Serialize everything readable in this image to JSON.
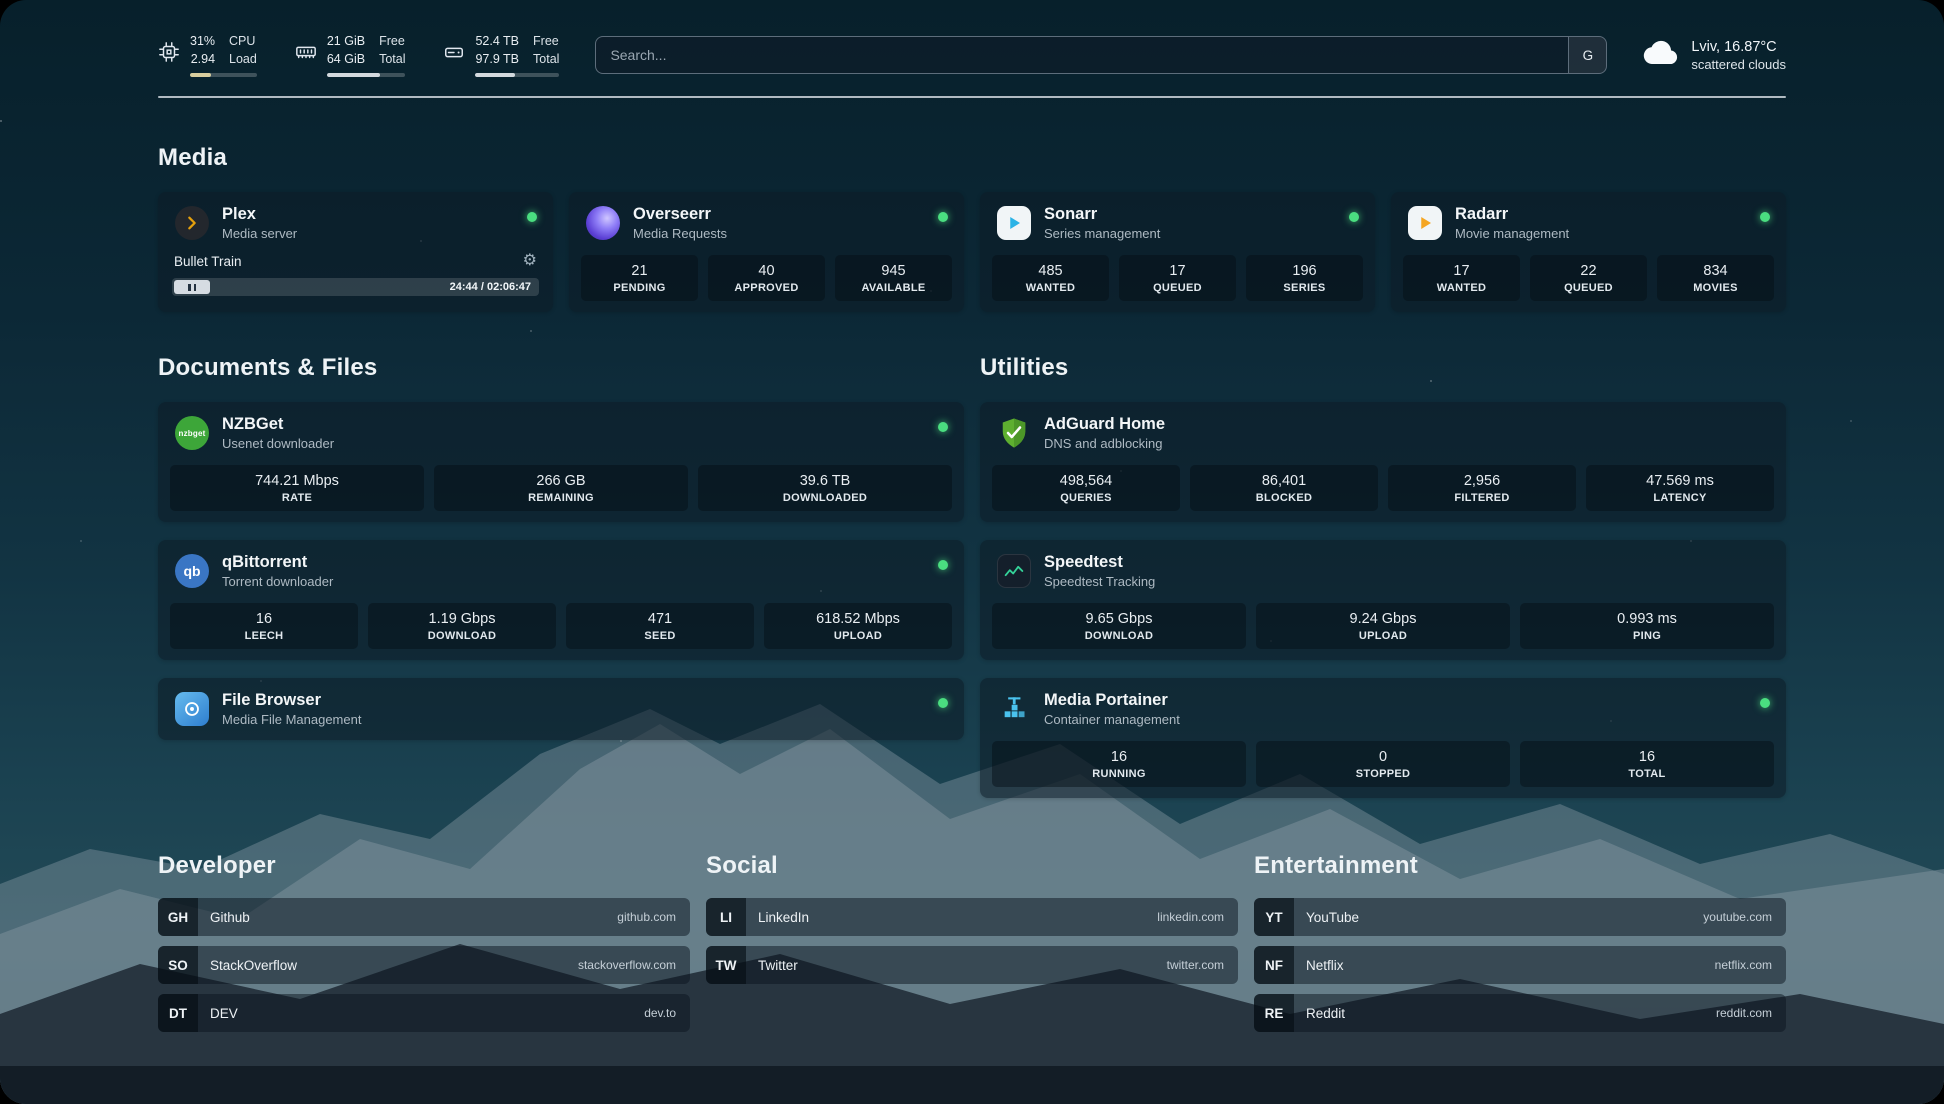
{
  "colors": {
    "status_ok": "#4ade80",
    "plex_accent": "#e5a00d",
    "sonarr_accent": "#2bb3e6",
    "radarr_accent": "#f5a623",
    "nzbget_accent": "#3da639",
    "qbittorrent_accent": "#3a76c4",
    "adguard_accent": "#5eaf30",
    "speedtest_accent": "#34d399",
    "portainer_accent": "#4ac2ee"
  },
  "topbar": {
    "resources": [
      {
        "icon": "cpu-icon",
        "values": [
          "31%",
          "2.94"
        ],
        "labels": [
          "CPU",
          "Load"
        ],
        "progress": 31,
        "bar_color": "#d8ce9f"
      },
      {
        "icon": "memory-icon",
        "values": [
          "21 GiB",
          "64 GiB"
        ],
        "labels": [
          "Free",
          "Total"
        ],
        "progress": 67,
        "bar_color": "#d3d9de"
      },
      {
        "icon": "disk-icon",
        "values": [
          "52.4 TB",
          "97.9 TB"
        ],
        "labels": [
          "Free",
          "Total"
        ],
        "progress": 47,
        "bar_color": "#d3d9de"
      }
    ],
    "search": {
      "placeholder": "Search...",
      "provider": "G"
    },
    "weather": {
      "icon": "cloud-icon",
      "location": "Lviv, 16.87°C",
      "condition": "scattered clouds"
    }
  },
  "sections": {
    "media": {
      "title": "Media",
      "plex": {
        "icon": "plex-icon",
        "name": "Plex",
        "subtitle": "Media server",
        "online": true,
        "now_playing": "Bullet Train",
        "time": "24:44 / 02:06:47"
      },
      "overseerr": {
        "icon": "overseerr-icon",
        "name": "Overseerr",
        "subtitle": "Media Requests",
        "online": true,
        "stats": [
          {
            "value": "21",
            "label": "PENDING"
          },
          {
            "value": "40",
            "label": "APPROVED"
          },
          {
            "value": "945",
            "label": "AVAILABLE"
          }
        ]
      },
      "sonarr": {
        "icon": "sonarr-icon",
        "name": "Sonarr",
        "subtitle": "Series management",
        "online": true,
        "stats": [
          {
            "value": "485",
            "label": "WANTED"
          },
          {
            "value": "17",
            "label": "QUEUED"
          },
          {
            "value": "196",
            "label": "SERIES"
          }
        ]
      },
      "radarr": {
        "icon": "radarr-icon",
        "name": "Radarr",
        "subtitle": "Movie management",
        "online": true,
        "stats": [
          {
            "value": "17",
            "label": "WANTED"
          },
          {
            "value": "22",
            "label": "QUEUED"
          },
          {
            "value": "834",
            "label": "MOVIES"
          }
        ]
      }
    },
    "documents": {
      "title": "Documents & Files",
      "nzbget": {
        "icon": "nzbget-icon",
        "name": "NZBGet",
        "subtitle": "Usenet downloader",
        "online": true,
        "stats": [
          {
            "value": "744.21 Mbps",
            "label": "RATE"
          },
          {
            "value": "266 GB",
            "label": "REMAINING"
          },
          {
            "value": "39.6 TB",
            "label": "DOWNLOADED"
          }
        ]
      },
      "qbittorrent": {
        "icon": "qbittorrent-icon",
        "name": "qBittorrent",
        "subtitle": "Torrent downloader",
        "online": true,
        "stats": [
          {
            "value": "16",
            "label": "LEECH"
          },
          {
            "value": "1.19 Gbps",
            "label": "DOWNLOAD"
          },
          {
            "value": "471",
            "label": "SEED"
          },
          {
            "value": "618.52 Mbps",
            "label": "UPLOAD"
          }
        ]
      },
      "filebrowser": {
        "icon": "filebrowser-icon",
        "name": "File Browser",
        "subtitle": "Media File Management",
        "online": true
      }
    },
    "utilities": {
      "title": "Utilities",
      "adguard": {
        "icon": "adguard-icon",
        "name": "AdGuard Home",
        "subtitle": "DNS and adblocking",
        "stats": [
          {
            "value": "498,564",
            "label": "QUERIES"
          },
          {
            "value": "86,401",
            "label": "BLOCKED"
          },
          {
            "value": "2,956",
            "label": "FILTERED"
          },
          {
            "value": "47.569 ms",
            "label": "LATENCY"
          }
        ]
      },
      "speedtest": {
        "icon": "speedtest-icon",
        "name": "Speedtest",
        "subtitle": "Speedtest Tracking",
        "stats": [
          {
            "value": "9.65 Gbps",
            "label": "DOWNLOAD"
          },
          {
            "value": "9.24 Gbps",
            "label": "UPLOAD"
          },
          {
            "value": "0.993 ms",
            "label": "PING"
          }
        ]
      },
      "portainer": {
        "icon": "portainer-icon",
        "name": "Media Portainer",
        "subtitle": "Container management",
        "online": true,
        "stats": [
          {
            "value": "16",
            "label": "RUNNING"
          },
          {
            "value": "0",
            "label": "STOPPED"
          },
          {
            "value": "16",
            "label": "TOTAL"
          }
        ]
      }
    }
  },
  "bookmarks": [
    {
      "title": "Developer",
      "items": [
        {
          "abbr": "GH",
          "name": "Github",
          "url": "github.com"
        },
        {
          "abbr": "SO",
          "name": "StackOverflow",
          "url": "stackoverflow.com"
        },
        {
          "abbr": "DT",
          "name": "DEV",
          "url": "dev.to"
        }
      ]
    },
    {
      "title": "Social",
      "items": [
        {
          "abbr": "LI",
          "name": "LinkedIn",
          "url": "linkedin.com"
        },
        {
          "abbr": "TW",
          "name": "Twitter",
          "url": "twitter.com"
        }
      ]
    },
    {
      "title": "Entertainment",
      "items": [
        {
          "abbr": "YT",
          "name": "YouTube",
          "url": "youtube.com"
        },
        {
          "abbr": "NF",
          "name": "Netflix",
          "url": "netflix.com"
        },
        {
          "abbr": "RE",
          "name": "Reddit",
          "url": "reddit.com"
        }
      ]
    }
  ]
}
